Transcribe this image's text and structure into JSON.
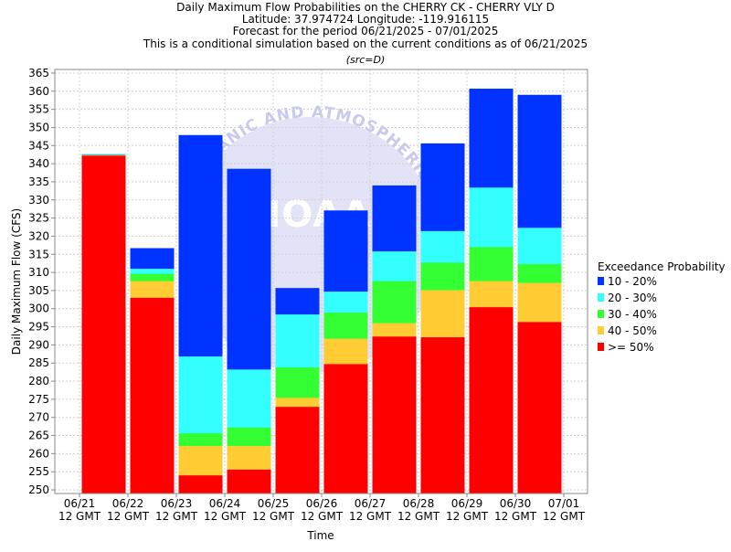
{
  "chart_data": {
    "type": "bar",
    "stacked": true,
    "title_lines": [
      "Daily Maximum Flow Probabilities on the CHERRY CK - CHERRY VLY D",
      "Latitude: 37.974724 Longitude: -119.916115",
      "Forecast for the period 06/21/2025 - 07/01/2025",
      "This is a conditional simulation based on the current conditions as of 06/21/2025"
    ],
    "subtitle": "(src=D)",
    "xlabel": "Time",
    "ylabel": "Daily Maximum Flow (CFS)",
    "ylim": [
      249,
      366
    ],
    "yticks": [
      250,
      255,
      260,
      265,
      270,
      275,
      280,
      285,
      290,
      295,
      300,
      305,
      310,
      315,
      320,
      325,
      330,
      335,
      340,
      345,
      350,
      355,
      360,
      365
    ],
    "x_ticks": [
      {
        "date": "06/21",
        "time": "12 GMT"
      },
      {
        "date": "06/22",
        "time": "12 GMT"
      },
      {
        "date": "06/23",
        "time": "12 GMT"
      },
      {
        "date": "06/24",
        "time": "12 GMT"
      },
      {
        "date": "06/25",
        "time": "12 GMT"
      },
      {
        "date": "06/26",
        "time": "12 GMT"
      },
      {
        "date": "06/27",
        "time": "12 GMT"
      },
      {
        "date": "06/28",
        "time": "12 GMT"
      },
      {
        "date": "06/29",
        "time": "12 GMT"
      },
      {
        "date": "06/30",
        "time": "12 GMT"
      },
      {
        "date": "07/01",
        "time": "12 GMT"
      }
    ],
    "grid": true,
    "legend_title": "Exceedance Probability",
    "legend_position": "right",
    "series": [
      {
        "name": "10 - 20%",
        "color": "#0033ff",
        "top": [
          342.6,
          316.7,
          347.9,
          338.6,
          305.7,
          327.1,
          334.0,
          345.6,
          360.7,
          359.0
        ]
      },
      {
        "name": "20 - 30%",
        "color": "#33ffff",
        "top": [
          342.5,
          311.0,
          286.8,
          283.2,
          298.4,
          304.7,
          315.8,
          321.4,
          333.4,
          322.3
        ]
      },
      {
        "name": "30 - 40%",
        "color": "#33ff33",
        "top": [
          342.4,
          309.6,
          265.6,
          267.2,
          283.8,
          298.9,
          307.6,
          312.7,
          317.0,
          312.3
        ]
      },
      {
        "name": "40 - 50%",
        "color": "#ffcc33",
        "top": [
          342.3,
          307.6,
          262.1,
          262.1,
          275.4,
          291.7,
          296.0,
          305.1,
          307.6,
          307.1
        ]
      },
      {
        "name": ">= 50%",
        "color": "#ff0000",
        "top": [
          342.2,
          303.0,
          254.0,
          255.6,
          272.9,
          284.7,
          292.3,
          292.1,
          300.4,
          296.3
        ]
      }
    ],
    "watermark": {
      "arc_text": "OCEANIC AND ATMOSPHERIC",
      "center_text": "NOAA"
    }
  }
}
